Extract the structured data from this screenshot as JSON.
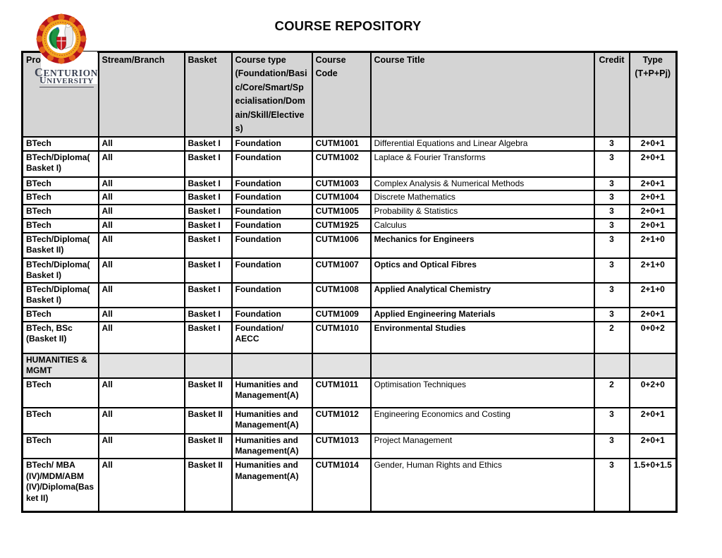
{
  "page_title": "COURSE REPOSITORY",
  "logo": {
    "line1": "CENTURION",
    "line2": "UNIVERSITY",
    "emblem": "centurion-university-emblem"
  },
  "colors": {
    "header_bg": "#d4d4d4",
    "section_bg": "#e2e2e2",
    "border": "#000000",
    "logo_text": "#3a4152",
    "emblem_red": "#b5121b",
    "emblem_orange": "#e4641c",
    "emblem_gold": "#f2a41f",
    "emblem_green": "#1f9443"
  },
  "table": {
    "headers": [
      "Program",
      "Stream/Branch",
      "Basket",
      "Course type (Foundation/Basic/Core/Smart/Specialisation/Domain/Skill/Electives)",
      "Course Code",
      "Course Title",
      "Credit",
      "Type (T+P+Pj)"
    ],
    "rows": [
      {
        "program": "BTech",
        "stream": "All",
        "basket": "Basket I",
        "course_type": "Foundation",
        "code": "CUTM1001",
        "title": "Differential Equations  and Linear Algebra",
        "credit": "3",
        "type": "2+0+1",
        "title_bold": false
      },
      {
        "program": "BTech/Diploma(Basket I)",
        "stream": "All",
        "basket": "Basket I",
        "course_type": "Foundation",
        "code": "CUTM1002",
        "title": "Laplace & Fourier Transforms",
        "credit": "3",
        "type": "2+0+1",
        "title_bold": false
      },
      {
        "program": "BTech",
        "stream": "All",
        "basket": "Basket I",
        "course_type": "Foundation",
        "code": "CUTM1003",
        "title": "Complex Analysis & Numerical Methods",
        "credit": "3",
        "type": "2+0+1",
        "title_bold": false
      },
      {
        "program": "BTech",
        "stream": "All",
        "basket": "Basket I",
        "course_type": "Foundation",
        "code": "CUTM1004",
        "title": "Discrete Mathematics",
        "credit": "3",
        "type": "2+0+1",
        "title_bold": false
      },
      {
        "program": "BTech",
        "stream": "All",
        "basket": "Basket I",
        "course_type": "Foundation",
        "code": "CUTM1005",
        "title": "Probability & Statistics",
        "credit": "3",
        "type": "2+0+1",
        "title_bold": false
      },
      {
        "program": "BTech",
        "stream": "All",
        "basket": "Basket I",
        "course_type": "Foundation",
        "code": "CUTM1925",
        "title": "Calculus",
        "credit": "3",
        "type": "2+0+1",
        "title_bold": false
      },
      {
        "program": "BTech/Diploma(Basket II)",
        "stream": "All",
        "basket": "Basket I",
        "course_type": "Foundation",
        "code": "CUTM1006",
        "title": "Mechanics for Engineers",
        "credit": "3",
        "type": "2+1+0",
        "title_bold": true
      },
      {
        "program": "BTech/Diploma(Basket I)",
        "stream": "All",
        "basket": "Basket I",
        "course_type": "Foundation",
        "code": "CUTM1007",
        "title": "Optics and Optical Fibres",
        "credit": "3",
        "type": "2+1+0",
        "title_bold": true
      },
      {
        "program": "BTech/Diploma(Basket I)",
        "stream": "All",
        "basket": "Basket I",
        "course_type": "Foundation",
        "code": "CUTM1008",
        "title": "Applied Analytical Chemistry",
        "credit": "3",
        "type": "2+1+0",
        "title_bold": true
      },
      {
        "program": "BTech",
        "stream": "All",
        "basket": "Basket I",
        "course_type": "Foundation",
        "code": "CUTM1009",
        "title": "Applied Engineering Materials",
        "credit": "3",
        "type": "2+0+1",
        "title_bold": true
      },
      {
        "program": "BTech, BSc (Basket II)",
        "stream": "All",
        "basket": "Basket I",
        "course_type": "Foundation/ AECC",
        "code": "CUTM1010",
        "title": "Environmental Studies",
        "credit": "2",
        "type": "0+0+2",
        "title_bold": true
      },
      {
        "section": "HUMANITIES & MGMT"
      },
      {
        "program": "BTech",
        "stream": "All",
        "basket": "Basket II",
        "course_type": "Humanities and Management(A)",
        "code": "CUTM1011",
        "title": "Optimisation Techniques",
        "credit": "2",
        "type": "0+2+0",
        "title_bold": false
      },
      {
        "program": "BTech",
        "stream": "All",
        "basket": "Basket II",
        "course_type": "Humanities and Management(A)",
        "code": "CUTM1012",
        "title": "Engineering Economics and Costing",
        "credit": "3",
        "type": "2+0+1",
        "title_bold": false
      },
      {
        "program": "BTech",
        "stream": "All",
        "basket": "Basket II",
        "course_type": "Humanities and Management(A)",
        "code": "CUTM1013",
        "title": "Project Management",
        "credit": "3",
        "type": "2+0+1",
        "title_bold": false
      },
      {
        "program": "BTech/ MBA (IV)/MDM/ABM (IV)/Diploma(Basket II)",
        "stream": "All",
        "basket": "Basket II",
        "course_type": "Humanities and Management(A)",
        "code": "CUTM1014",
        "title": "Gender, Human Rights and Ethics",
        "credit": "3",
        "type": "1.5+0+1.5",
        "title_bold": false
      }
    ]
  }
}
